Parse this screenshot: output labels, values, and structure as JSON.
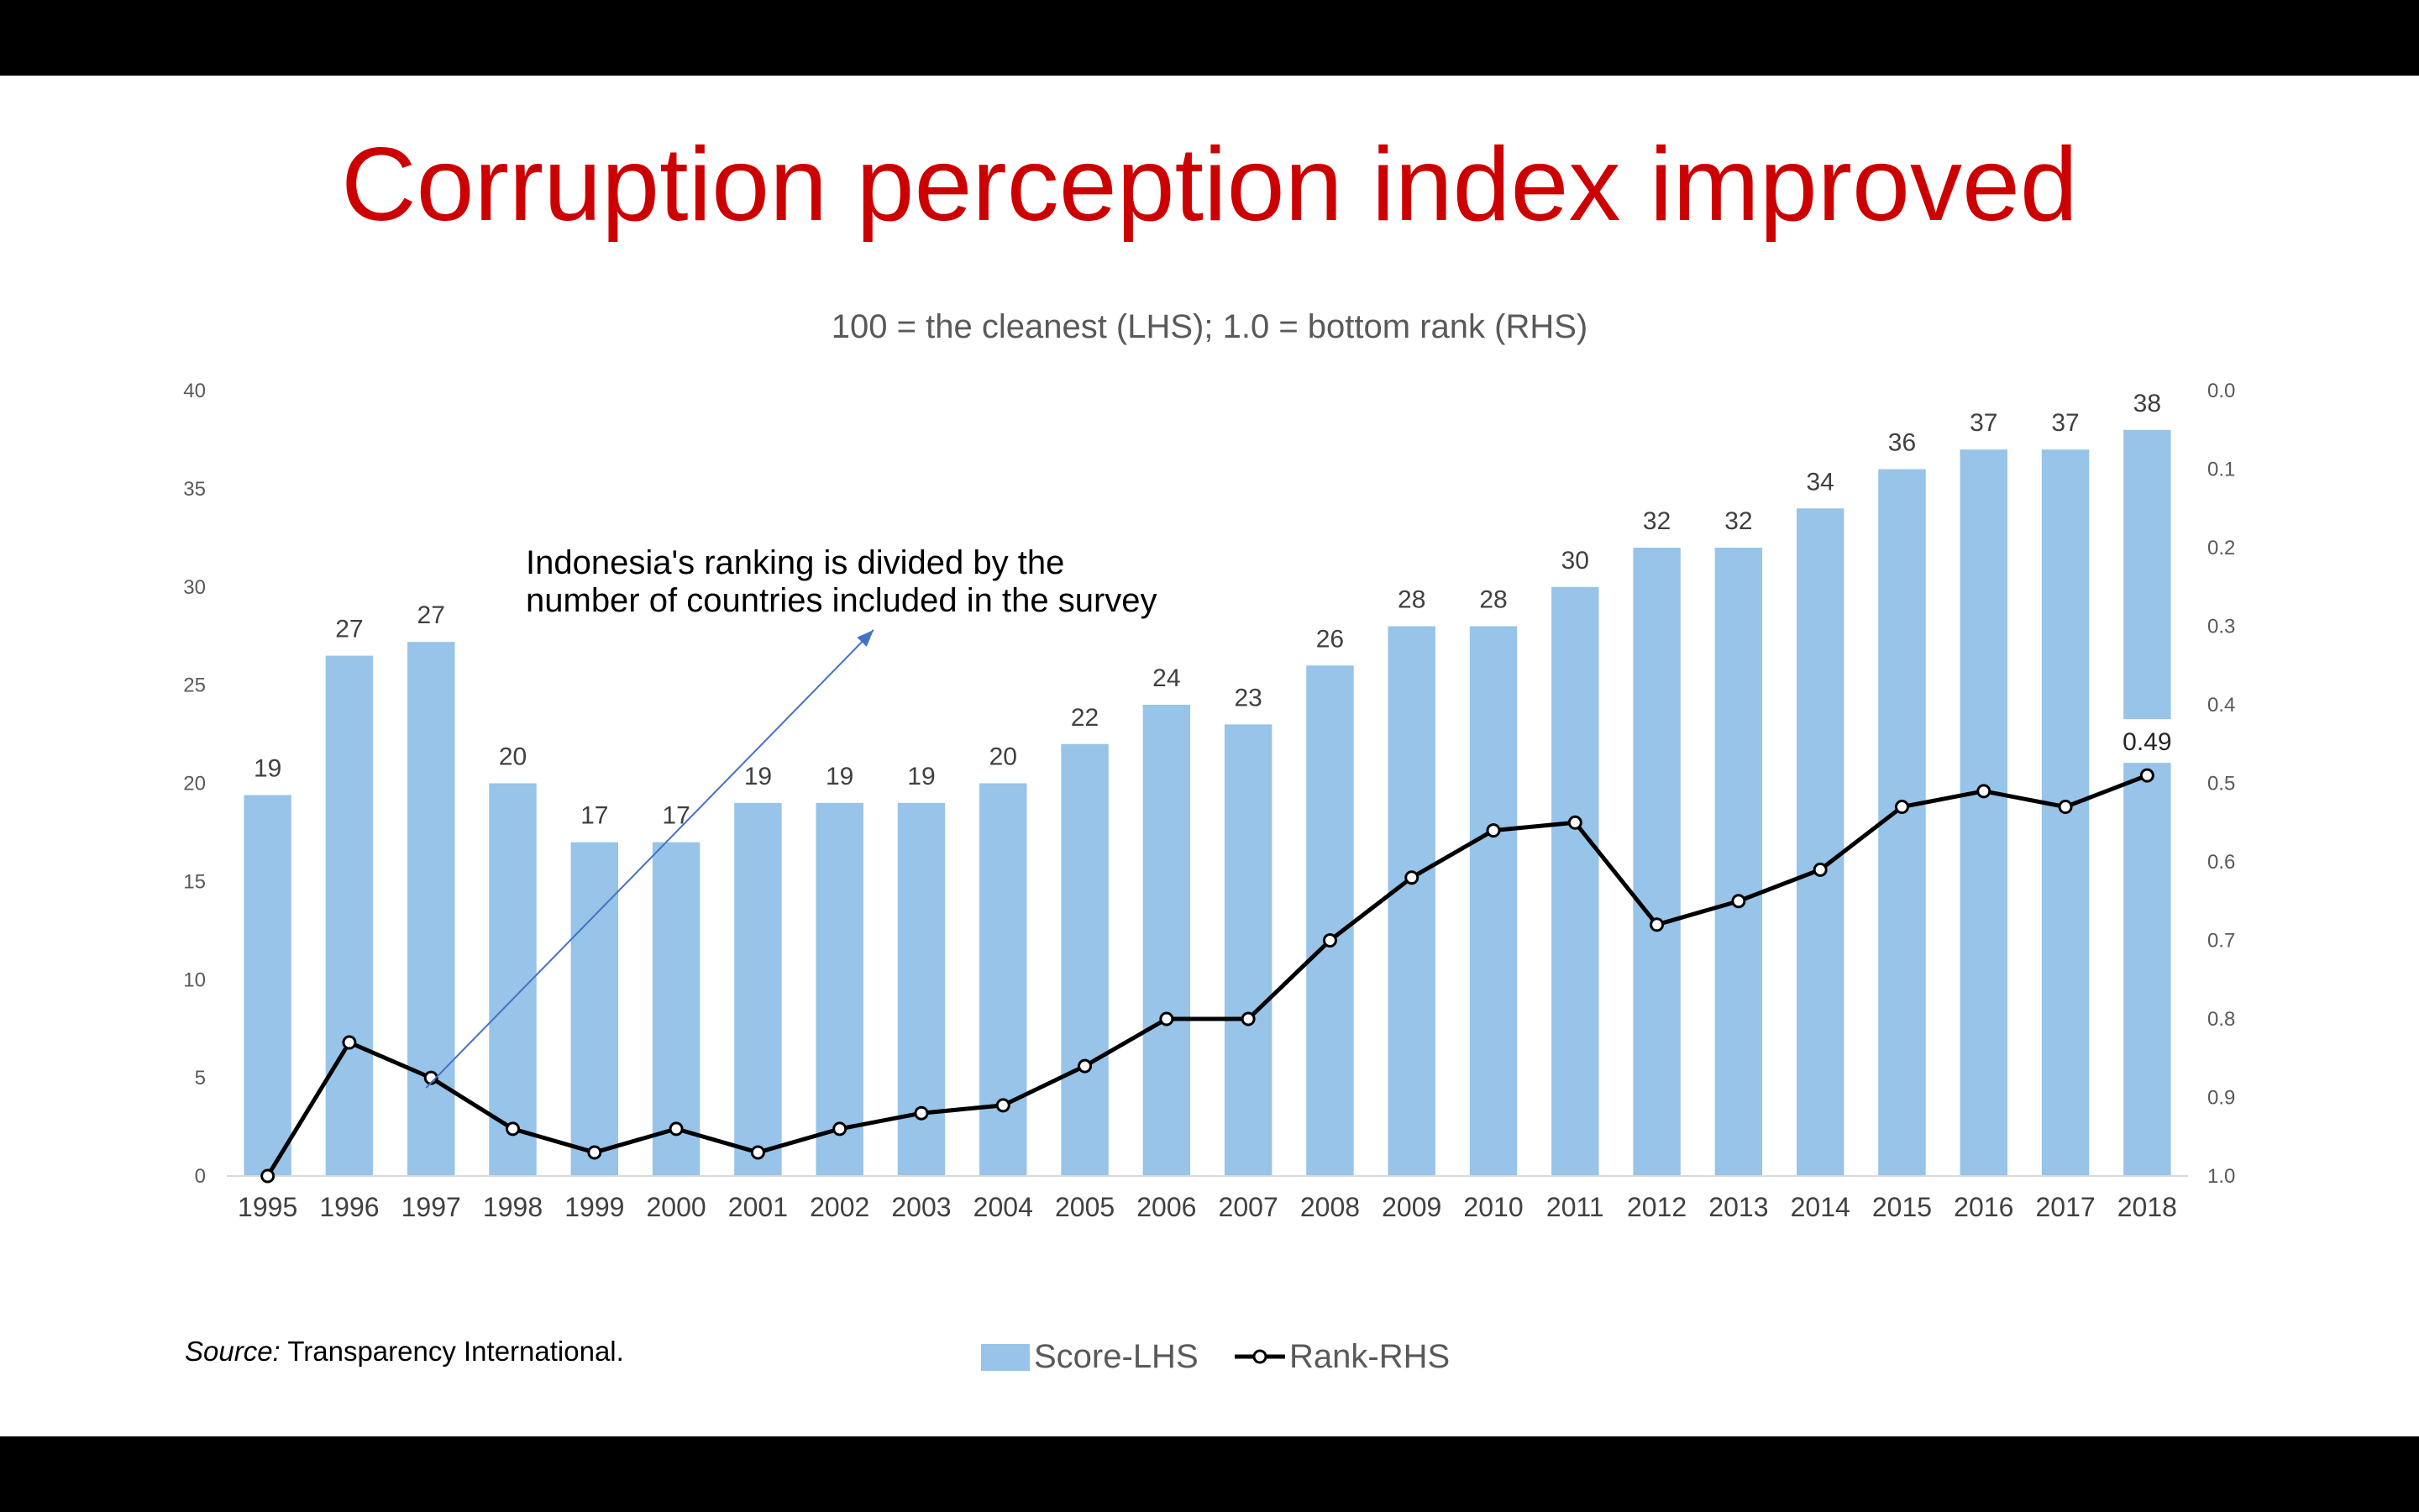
{
  "slide": {
    "title": "Corruption perception index improved",
    "source_label": "Source:",
    "source_text": "Transparency International."
  },
  "chart_data": {
    "type": "bar",
    "title": "",
    "subtitle": "100 = the cleanest (LHS); 1.0 = bottom rank (RHS)",
    "xlabel": "",
    "ylabel": "",
    "categories": [
      "1995",
      "1996",
      "1997",
      "1998",
      "1999",
      "2000",
      "2001",
      "2002",
      "2003",
      "2004",
      "2005",
      "2006",
      "2007",
      "2008",
      "2009",
      "2010",
      "2011",
      "2012",
      "2013",
      "2014",
      "2015",
      "2016",
      "2017",
      "2018"
    ],
    "series": [
      {
        "name": "Score-LHS",
        "type": "bar",
        "axis": "left",
        "color": "#97c4e8",
        "values": [
          19.4,
          26.5,
          27.2,
          20,
          17,
          17,
          19,
          19,
          19,
          20,
          22,
          24,
          23,
          26,
          28,
          28,
          30,
          32,
          32,
          34,
          36,
          37,
          37,
          38
        ],
        "labels": [
          "19",
          "27",
          "27",
          "20",
          "17",
          "17",
          "19",
          "19",
          "19",
          "20",
          "22",
          "24",
          "23",
          "26",
          "28",
          "28",
          "30",
          "32",
          "32",
          "34",
          "36",
          "37",
          "37",
          "38"
        ]
      },
      {
        "name": "Rank-RHS",
        "type": "line",
        "axis": "right",
        "color": "#000000",
        "values": [
          1.0,
          0.83,
          0.875,
          0.94,
          0.97,
          0.94,
          0.97,
          0.94,
          0.92,
          0.91,
          0.86,
          0.8,
          0.8,
          0.7,
          0.62,
          0.56,
          0.55,
          0.68,
          0.65,
          0.61,
          0.53,
          0.51,
          0.53,
          0.49
        ],
        "end_label": "0.49"
      }
    ],
    "y_left": {
      "min": 0,
      "max": 40,
      "ticks": [
        "0",
        "5",
        "10",
        "15",
        "20",
        "25",
        "30",
        "35",
        "40"
      ]
    },
    "y_right": {
      "min": 0.0,
      "max": 1.0,
      "inverted": true,
      "ticks": [
        "0.0",
        "0.1",
        "0.2",
        "0.3",
        "0.4",
        "0.5",
        "0.6",
        "0.7",
        "0.8",
        "0.9",
        "1.0"
      ]
    },
    "annotation": {
      "lines": [
        "Indonesia's ranking is divided by the",
        "number of countries included in the survey"
      ],
      "points_to_category": "1997",
      "arrow_color": "#4472c4"
    },
    "legend": {
      "position": "bottom",
      "entries": [
        "Score-LHS",
        "Rank-RHS"
      ]
    },
    "grid": false
  }
}
